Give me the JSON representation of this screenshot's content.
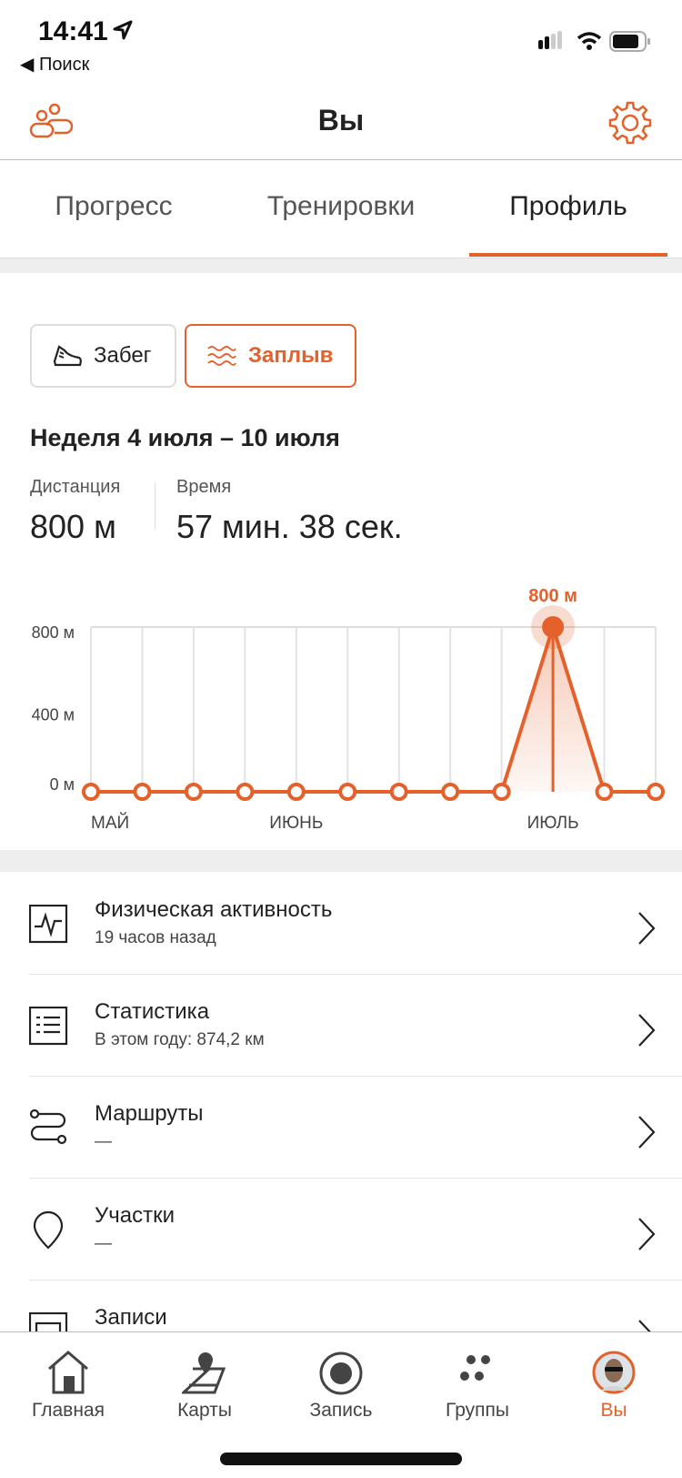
{
  "status": {
    "time": "14:41",
    "back": "◀ Поиск"
  },
  "header": {
    "title": "Вы"
  },
  "tabs": [
    {
      "label": "Прогресс"
    },
    {
      "label": "Тренировки"
    },
    {
      "label": "Профиль",
      "active": true
    }
  ],
  "sport": [
    {
      "label": "Забег",
      "icon": "shoe-icon"
    },
    {
      "label": "Заплыв",
      "icon": "waves-icon",
      "active": true
    }
  ],
  "week": {
    "title": "Неделя 4 июля – 10 июля",
    "distance_label": "Дистанция",
    "distance": "800 м",
    "time_label": "Время",
    "time": "57 мин. 38 сек."
  },
  "chart_data": {
    "type": "line",
    "x_tick_labels": [
      "МАЙ",
      "ИЮНЬ",
      "ИЮЛЬ"
    ],
    "y_tick_labels": [
      "800 м",
      "400 м",
      "0 м"
    ],
    "ylim": [
      0,
      800
    ],
    "values": [
      0,
      0,
      0,
      0,
      0,
      0,
      0,
      0,
      0,
      800,
      0,
      0
    ],
    "selected_index": 9,
    "selected_label": "800 м",
    "grid": true,
    "color": "#e4612b"
  },
  "list": [
    {
      "title": "Физическая активность",
      "subtitle": "19 часов назад",
      "icon": "activity-icon"
    },
    {
      "title": "Статистика",
      "subtitle": "В этом году: 874,2 км",
      "icon": "stats-icon"
    },
    {
      "title": "Маршруты",
      "subtitle": "—",
      "icon": "route-icon"
    },
    {
      "title": "Участки",
      "subtitle": "—",
      "icon": "pin-icon"
    },
    {
      "title": "Записи",
      "subtitle": "",
      "icon": "records-icon"
    }
  ],
  "tabbar": [
    {
      "label": "Главная"
    },
    {
      "label": "Карты"
    },
    {
      "label": "Запись"
    },
    {
      "label": "Группы"
    },
    {
      "label": "Вы",
      "active": true
    }
  ],
  "colors": {
    "accent": "#e4612b"
  }
}
